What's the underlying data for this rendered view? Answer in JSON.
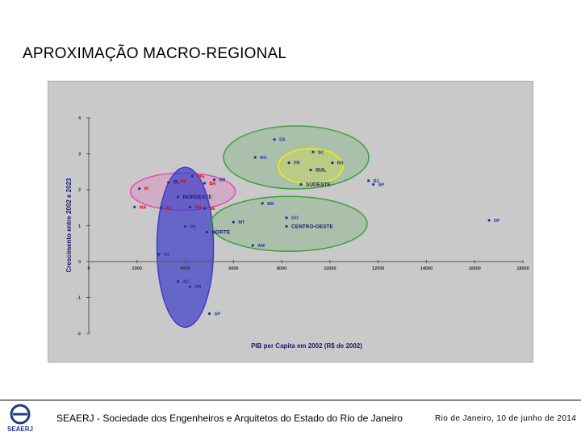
{
  "slide": {
    "title": "APROXIMAÇÃO MACRO-REGIONAL",
    "footer_org": "SEAERJ - Sociedade dos Engenheiros e Arquitetos do Estado do Rio de Janeiro",
    "footer_date": "Rio de Janeiro, 10 de junho de 2014",
    "logo_text": "SEAERJ"
  },
  "chart_data": {
    "type": "scatter",
    "title": "",
    "xlabel": "PIB per Capita em 2002 (R$ de 2002)",
    "ylabel": "Crescimento entre 2002 e 2023",
    "xlim": [
      0,
      18000
    ],
    "ylim": [
      -2,
      4
    ],
    "x_ticks": [
      "0",
      "2000",
      "4000",
      "6000",
      "8000",
      "10000",
      "12000",
      "14000",
      "16000",
      "18000"
    ],
    "y_ticks": [
      "4",
      "3",
      "2",
      "1",
      "0",
      "-1",
      "-2"
    ],
    "grid": false,
    "colors": {
      "background": "#c9c9c9",
      "point": "#1f2f9f",
      "norte": "#3c3cc8",
      "nordeste": "#e64bb4",
      "sudeste": "#3ca03c",
      "centro_oeste": "#3ca03c",
      "sul": "#f0f000",
      "point_label": "#1f2f9f",
      "nordeste_label": "#e60000",
      "region_label": "#1a1a6e"
    },
    "regions": [
      {
        "name": "NORDESTE",
        "color": "#e64bb4"
      },
      {
        "name": "NORTE",
        "color": "#3c3cc8"
      },
      {
        "name": "SUDESTE",
        "color": "#3ca03c"
      },
      {
        "name": "CENTRO-OESTE",
        "color": "#3ca03c"
      },
      {
        "name": "SUL",
        "color": "#f0f000"
      }
    ],
    "points": [
      {
        "label": "ES",
        "x": 7700,
        "y": 3.4
      },
      {
        "label": "RO",
        "x": 6900,
        "y": 2.9
      },
      {
        "label": "SC",
        "x": 9300,
        "y": 3.05
      },
      {
        "label": "PR",
        "x": 8300,
        "y": 2.75
      },
      {
        "label": "RS",
        "x": 10100,
        "y": 2.75
      },
      {
        "label": "SUL",
        "x": 9200,
        "y": 2.55
      },
      {
        "label": "MG",
        "x": 4300,
        "y": 2.38
      },
      {
        "label": "PB",
        "x": 3600,
        "y": 2.24
      },
      {
        "label": "CE",
        "x": 3300,
        "y": 2.2
      },
      {
        "label": "BA",
        "x": 4800,
        "y": 2.18
      },
      {
        "label": "RR",
        "x": 5200,
        "y": 2.28
      },
      {
        "label": "PI",
        "x": 2100,
        "y": 2.03
      },
      {
        "label": "SUDESTE",
        "x": 8800,
        "y": 2.15
      },
      {
        "label": "RJ",
        "x": 11600,
        "y": 2.25
      },
      {
        "label": "SP",
        "x": 11800,
        "y": 2.15
      },
      {
        "label": "NORDESTE",
        "x": 3700,
        "y": 1.8
      },
      {
        "label": "MA",
        "x": 1900,
        "y": 1.52
      },
      {
        "label": "AL",
        "x": 3000,
        "y": 1.5
      },
      {
        "label": "RN",
        "x": 4200,
        "y": 1.52
      },
      {
        "label": "SE",
        "x": 4800,
        "y": 1.48
      },
      {
        "label": "MS",
        "x": 7200,
        "y": 1.62
      },
      {
        "label": "GO",
        "x": 8200,
        "y": 1.22
      },
      {
        "label": "CENTRO-OESTE",
        "x": 8200,
        "y": 0.98
      },
      {
        "label": "MT",
        "x": 6000,
        "y": 1.1
      },
      {
        "label": "DF",
        "x": 16600,
        "y": 1.15
      },
      {
        "label": "PA",
        "x": 4000,
        "y": 0.98
      },
      {
        "label": "NORTE",
        "x": 4900,
        "y": 0.82
      },
      {
        "label": "AM",
        "x": 6800,
        "y": 0.45
      },
      {
        "label": "TO",
        "x": 2900,
        "y": 0.2
      },
      {
        "label": "AC",
        "x": 3700,
        "y": -0.55
      },
      {
        "label": "RR",
        "x": 4200,
        "y": -0.7
      },
      {
        "label": "AP",
        "x": 5000,
        "y": -1.45
      }
    ]
  }
}
